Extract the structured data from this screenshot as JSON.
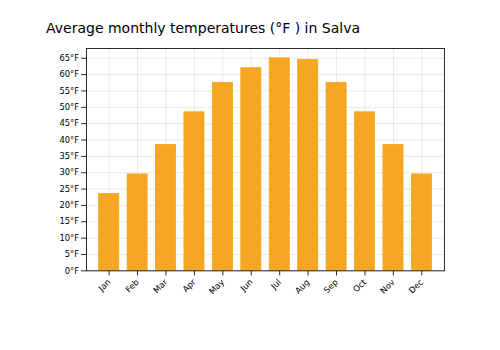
{
  "chart_data": {
    "type": "bar",
    "title": "Average monthly temperatures (°F ) in Salva",
    "categories": [
      "Jan",
      "Feb",
      "Mar",
      "Apr",
      "May",
      "Jun",
      "Jul",
      "Aug",
      "Sep",
      "Oct",
      "Nov",
      "Dec"
    ],
    "values": [
      23.5,
      29.5,
      38.5,
      48.5,
      57.5,
      62.0,
      65.0,
      64.5,
      57.5,
      48.5,
      38.5,
      29.5
    ],
    "color": "#F5A623",
    "ylim": [
      0,
      68
    ],
    "yticks": [
      {
        "value": 0,
        "label": "0°F"
      },
      {
        "value": 5,
        "label": "5°F"
      },
      {
        "value": 10,
        "label": "10°F"
      },
      {
        "value": 15,
        "label": "15°F"
      },
      {
        "value": 20,
        "label": "20°F"
      },
      {
        "value": 25,
        "label": "25°F"
      },
      {
        "value": 30,
        "label": "30°F"
      },
      {
        "value": 35,
        "label": "35°F"
      },
      {
        "value": 40,
        "label": "40°F"
      },
      {
        "value": 45,
        "label": "45°F"
      },
      {
        "value": 50,
        "label": "50°F"
      },
      {
        "value": 55,
        "label": "55°F"
      },
      {
        "value": 60,
        "label": "60°F"
      },
      {
        "value": 65,
        "label": "65°F"
      }
    ],
    "grid": true
  }
}
